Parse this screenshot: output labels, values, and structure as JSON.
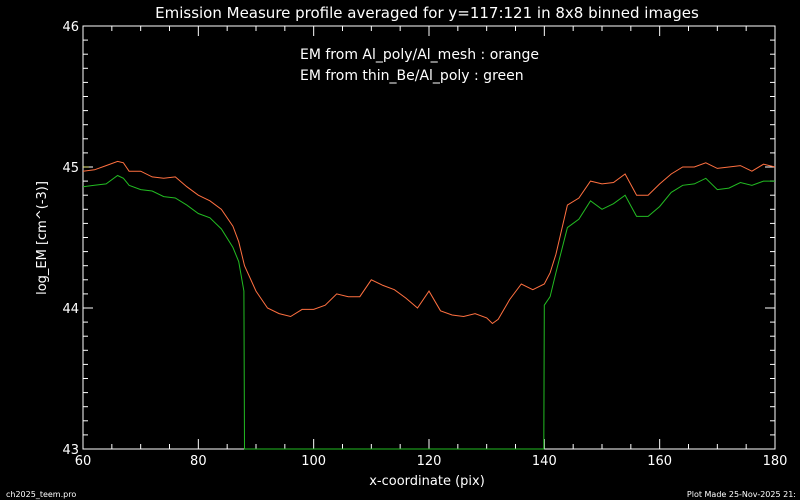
{
  "chart_data": {
    "type": "line",
    "title": "Emission Measure profile averaged for y=117:121 in 8x8 binned images",
    "xlabel": "x-coordinate (pix)",
    "ylabel": "log_EM [cm^(-3)]",
    "xlim": [
      60,
      180
    ],
    "ylim": [
      43,
      46
    ],
    "xticks": [
      60,
      80,
      100,
      120,
      140,
      160,
      180
    ],
    "yticks": [
      43,
      44,
      45,
      46
    ],
    "annotations": [
      "EM from Al_poly/Al_mesh : orange",
      "EM from thin_Be/Al_poly : green"
    ],
    "footer_left": "ch2025_teem.pro",
    "footer_right": "Plot Made 25-Nov-2025 21:",
    "colors": {
      "background": "#000000",
      "axes": "#ffffff",
      "orange": "#ff7040",
      "green": "#22bb22",
      "yellow": "#f0f080"
    },
    "series": [
      {
        "color_name": "orange",
        "x": [
          60,
          62,
          64,
          66,
          67,
          68,
          70,
          72,
          74,
          76,
          78,
          80,
          82,
          84,
          86,
          87,
          88,
          90,
          92,
          94,
          96,
          98,
          100,
          102,
          104,
          106,
          108,
          110,
          112,
          114,
          116,
          118,
          120,
          122,
          124,
          126,
          128,
          130,
          131,
          132,
          134,
          136,
          138,
          140,
          141,
          142,
          144,
          146,
          148,
          150,
          152,
          154,
          156,
          158,
          160,
          162,
          164,
          166,
          168,
          170,
          172,
          174,
          176,
          178,
          180
        ],
        "y": [
          44.97,
          44.98,
          45.01,
          45.04,
          45.03,
          44.97,
          44.97,
          44.93,
          44.92,
          44.93,
          44.86,
          44.8,
          44.76,
          44.7,
          44.58,
          44.47,
          44.3,
          44.12,
          44.0,
          43.96,
          43.94,
          43.99,
          43.99,
          44.02,
          44.1,
          44.08,
          44.08,
          44.2,
          44.16,
          44.13,
          44.07,
          44.0,
          44.12,
          43.98,
          43.95,
          43.94,
          43.96,
          43.93,
          43.89,
          43.92,
          44.06,
          44.17,
          44.13,
          44.17,
          44.25,
          44.38,
          44.73,
          44.78,
          44.9,
          44.88,
          44.89,
          44.95,
          44.8,
          44.8,
          44.88,
          44.95,
          45.0,
          45.0,
          45.03,
          44.99,
          45.0,
          45.01,
          44.97,
          45.02,
          45.0
        ]
      },
      {
        "color_name": "green",
        "x": [
          60,
          62,
          64,
          66,
          67,
          68,
          70,
          72,
          74,
          76,
          78,
          80,
          82,
          84,
          86,
          87,
          87.9,
          88,
          139.9,
          140,
          141,
          142,
          144,
          146,
          148,
          150,
          152,
          154,
          156,
          158,
          160,
          162,
          164,
          166,
          168,
          170,
          172,
          174,
          176,
          178,
          180
        ],
        "y": [
          44.86,
          44.87,
          44.88,
          44.94,
          44.92,
          44.87,
          44.84,
          44.83,
          44.79,
          44.78,
          44.73,
          44.67,
          44.64,
          44.56,
          44.43,
          44.33,
          44.12,
          43.0,
          43.0,
          44.02,
          44.08,
          44.25,
          44.57,
          44.63,
          44.76,
          44.7,
          44.74,
          44.8,
          44.65,
          44.65,
          44.72,
          44.82,
          44.87,
          44.88,
          44.92,
          44.84,
          44.85,
          44.89,
          44.87,
          44.9,
          44.9
        ]
      },
      {
        "color_name": "yellow",
        "x": [
          60,
          61
        ],
        "y": [
          45.0,
          45.0
        ]
      }
    ]
  }
}
